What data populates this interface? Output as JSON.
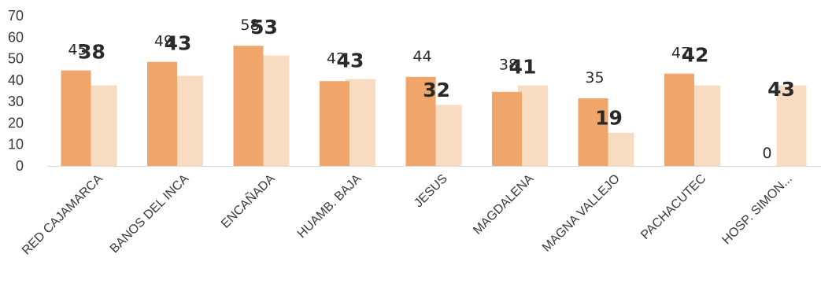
{
  "chart_data": {
    "type": "bar",
    "title": "",
    "xlabel": "",
    "ylabel": "",
    "ylim": [
      0,
      70
    ],
    "yticks": [
      0,
      10,
      20,
      30,
      40,
      50,
      60,
      70
    ],
    "grid": false,
    "categories": [
      "RED CAJAMARCA",
      "BANOS DEL INCA",
      "ENCAÑADA",
      "HUAMB.  BAJA",
      "JESUS",
      "MAGDALENA",
      "MAGNA VALLEJO",
      "PACHACUTEC",
      "HOSP. SIMON..."
    ],
    "series": [
      {
        "values": [
          45,
          49,
          58,
          42,
          44,
          38,
          35,
          47,
          0
        ],
        "heights": [
          44.5,
          48.5,
          56,
          39.5,
          41.5,
          34.5,
          31.5,
          43,
          0
        ],
        "color": "#f0a56b"
      },
      {
        "values": [
          38,
          43,
          53,
          43,
          32,
          41,
          19,
          42,
          43
        ],
        "heights": [
          37.5,
          42,
          51.5,
          40.5,
          28.5,
          37.5,
          15.5,
          37.5,
          37.5
        ],
        "color": "#f7dcc2"
      }
    ]
  }
}
